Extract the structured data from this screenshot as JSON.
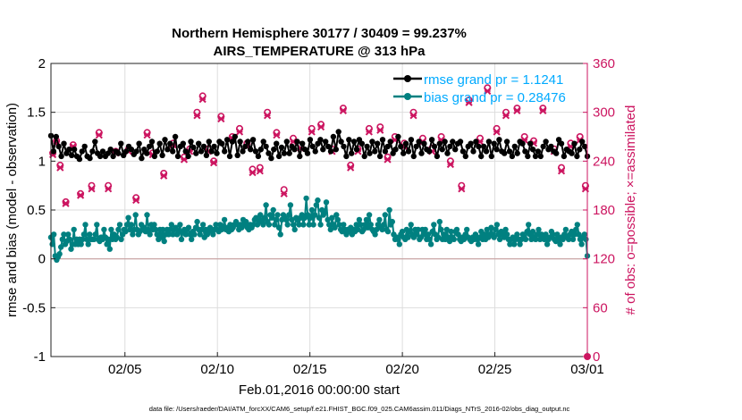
{
  "chart_data": {
    "type": "line",
    "title_line1": "Northern Hemisphere 30177 / 30409 = 99.237%",
    "title_line2": "AIRS_TEMPERATURE @ 313 hPa",
    "xlabel": "Feb.01,2016 00:00:00 start",
    "ylabel_left": "rmse and bias (model - observation)",
    "ylabel_right": "# of obs: o=possible; ×=assimilated",
    "footnote": "data file: /Users/raeder/DAI/ATM_forcXX/CAM6_setup/f.e21.FHIST_BGC.f09_025.CAM6assim.011/Diags_NTrS_2016-02/obs_diag_output.nc",
    "x_range": [
      1,
      30
    ],
    "x_ticks": [
      5,
      10,
      15,
      20,
      25,
      30
    ],
    "x_tick_labels": [
      "02/05",
      "02/10",
      "02/15",
      "02/20",
      "02/25",
      "03/01"
    ],
    "ylim_left": [
      -1,
      2
    ],
    "yticks_left": [
      -1,
      -0.5,
      0,
      0.5,
      1,
      1.5,
      2
    ],
    "ytick_labels_left": [
      "-1",
      "-0.5",
      "0",
      "0.5",
      "1",
      "1.5",
      "2"
    ],
    "ylim_right": [
      0,
      360
    ],
    "yticks_right": [
      0,
      60,
      120,
      180,
      240,
      300,
      360
    ],
    "ytick_labels_right": [
      "0",
      "60",
      "120",
      "180",
      "240",
      "300",
      "360"
    ],
    "grid": true,
    "legend_location": "top-right",
    "colors": {
      "rmse": "#000000",
      "bias": "#008080",
      "obs": "#cc1560",
      "legend_text": "#00aaff",
      "grid": "#dddddd",
      "zero_line": "#c8a0a0"
    },
    "series": [
      {
        "name": "rmse grand pr = 1.1241",
        "axis": "left",
        "values": [
          1.26,
          1.1,
          1.25,
          1.15,
          1.05,
          1.18,
          1.08,
          1.12,
          1.06,
          1.12,
          1.05,
          1.02,
          1.1,
          1.15,
          1.05,
          1.03,
          1.1,
          1.2,
          1.08,
          1.05,
          1.1,
          1.05,
          1.08,
          1.12,
          1.05,
          1.1,
          1.08,
          1.18,
          1.06,
          1.1,
          1.15,
          1.12,
          1.07,
          1.1,
          1.18,
          1.03,
          1.12,
          1.08,
          1.15,
          1.2,
          1.05,
          1.1,
          1.18,
          1.06,
          1.22,
          1.12,
          1.18,
          1.1,
          1.25,
          1.05,
          1.15,
          1.18,
          1.1,
          1.05,
          1.2,
          1.14,
          1.08,
          1.18,
          1.1,
          1.15,
          1.06,
          1.2,
          1.1,
          1.15,
          1.08,
          1.2,
          1.18,
          1.1,
          1.22,
          1.05,
          1.2,
          1.25,
          1.06,
          1.2,
          1.1,
          1.15,
          1.2,
          1.12,
          1.22,
          1.1,
          1.05,
          1.12,
          1.2,
          1.15,
          1.08,
          1.03,
          1.12,
          1.18,
          1.05,
          1.14,
          1.08,
          1.2,
          1.08,
          1.15,
          1.12,
          1.2,
          1.05,
          1.18,
          1.12,
          1.08,
          1.22,
          1.15,
          1.1,
          1.18,
          1.22,
          1.12,
          1.2,
          1.15,
          1.1,
          1.25,
          1.12,
          1.3,
          1.2,
          1.15,
          1.05,
          1.22,
          1.08,
          1.2,
          1.12,
          1.22,
          1.18,
          1.05,
          1.15,
          1.08,
          1.2,
          1.1,
          1.18,
          1.05,
          1.22,
          1.1,
          1.15,
          1.2,
          1.08,
          1.12,
          1.25,
          1.15,
          1.08,
          1.18,
          1.1,
          1.22,
          1.05,
          1.15,
          1.2,
          1.08,
          1.18,
          1.12,
          1.1,
          1.22,
          1.15,
          1.05,
          1.18,
          1.12,
          1.2,
          1.08,
          1.15,
          1.2,
          1.12,
          1.18,
          1.2,
          1.1,
          1.05,
          1.15,
          1.18,
          1.1,
          1.2,
          1.15,
          1.05,
          1.15,
          1.1,
          1.2,
          1.05,
          1.18,
          1.12,
          1.22,
          1.1,
          1.08,
          1.2,
          1.1,
          1.05,
          1.15,
          1.08,
          1.2,
          1.18,
          1.1,
          1.05,
          1.18,
          1.12,
          1.05,
          1.1,
          1.05,
          1.15,
          1.2,
          1.12,
          1.15,
          1.1,
          1.08,
          1.22,
          1.18,
          1.05,
          1.12,
          1.1,
          1.08,
          1.18,
          1.05,
          1.12,
          1.2,
          1.15,
          1.05
        ]
      },
      {
        "name": "bias grand pr = 0.28476",
        "axis": "left",
        "values": [
          0.22,
          0.15,
          0.25,
          0.03,
          -0.01,
          0.02,
          0.05,
          0.12,
          0.2,
          0.25,
          0.15,
          0.18,
          0.25,
          0.2,
          0.1,
          0.15,
          0.3,
          0.15,
          0.2,
          0.15,
          0.2,
          0.15,
          0.2,
          0.25,
          0.35,
          0.2,
          0.15,
          0.25,
          0.2,
          0.2,
          0.2,
          0.25,
          0.35,
          0.2,
          0.18,
          0.22,
          0.2,
          0.3,
          0.22,
          0.15,
          0.2,
          0.1,
          0.3,
          0.2,
          0.25,
          0.2,
          0.22,
          0.3,
          0.35,
          0.2,
          0.25,
          0.3,
          0.28,
          0.35,
          0.42,
          0.3,
          0.35,
          0.25,
          0.3,
          0.45,
          0.3,
          0.25,
          0.28,
          0.35,
          0.3,
          0.32,
          0.28,
          0.45,
          0.3,
          0.25,
          0.35,
          0.3,
          0.35,
          0.3,
          0.25,
          0.2,
          0.3,
          0.22,
          0.3,
          0.18,
          0.25,
          0.3,
          0.25,
          0.3,
          0.35,
          0.25,
          0.3,
          0.32,
          0.25,
          0.28,
          0.35,
          0.2,
          0.28,
          0.3,
          0.25,
          0.3,
          0.32,
          0.25,
          0.2,
          0.28,
          0.25,
          0.32,
          0.38,
          0.3,
          0.25,
          0.3,
          0.35,
          0.22,
          0.3,
          0.25,
          0.28,
          0.32,
          0.3,
          0.25,
          0.3,
          0.35,
          0.3,
          0.28,
          0.35,
          0.3,
          0.32,
          0.4,
          0.3,
          0.32,
          0.28,
          0.35,
          0.3,
          0.32,
          0.35,
          0.38,
          0.35,
          0.3,
          0.35,
          0.32,
          0.4,
          0.35,
          0.38,
          0.32,
          0.3,
          0.35,
          0.32,
          0.35,
          0.4,
          0.42,
          0.35,
          0.38,
          0.45,
          0.38,
          0.35,
          0.42,
          0.55,
          0.38,
          0.35,
          0.45,
          0.42,
          0.5,
          0.35,
          0.4,
          0.45,
          0.32,
          0.25,
          0.4,
          0.45,
          0.42,
          0.4,
          0.35,
          0.45,
          0.55,
          0.4,
          0.35,
          0.3,
          0.42,
          0.4,
          0.35,
          0.42,
          0.45,
          0.35,
          0.42,
          0.62,
          0.45,
          0.35,
          0.42,
          0.5,
          0.35,
          0.45,
          0.55,
          0.6,
          0.42,
          0.35,
          0.5,
          0.45,
          0.48,
          0.58,
          0.4,
          0.35,
          0.3,
          0.42,
          0.35,
          0.32,
          0.45,
          0.4,
          0.35,
          0.3,
          0.28,
          0.35,
          0.3,
          0.25,
          0.3,
          0.28,
          0.32,
          0.25,
          0.3,
          0.28,
          0.35,
          0.3,
          0.4,
          0.35,
          0.28,
          0.3,
          0.35,
          0.4,
          0.32,
          0.45,
          0.35,
          0.3,
          0.28,
          0.25,
          0.3,
          0.35,
          0.4,
          0.32,
          0.3,
          0.35,
          0.45,
          0.3,
          0.28,
          0.5,
          0.35,
          0.38,
          0.25,
          0.2,
          0.22,
          0.2,
          0.15,
          0.25,
          0.28,
          0.22,
          0.2,
          0.3,
          0.22,
          0.28,
          0.35,
          0.25,
          0.22,
          0.3,
          0.25,
          0.3,
          0.2,
          0.22,
          0.3,
          0.25,
          0.3,
          0.2,
          0.25,
          0.2,
          0.15,
          0.28,
          0.35,
          0.25,
          0.2,
          0.22,
          0.38,
          0.3,
          0.2,
          0.25,
          0.2,
          0.3,
          0.22,
          0.18,
          0.28,
          0.22,
          0.2,
          0.28,
          0.3,
          0.25,
          0.2,
          0.18,
          0.22,
          0.2,
          0.25,
          0.3,
          0.22,
          0.2,
          0.18,
          0.22,
          0.2,
          0.25,
          0.2,
          0.15,
          0.22,
          0.28,
          0.2,
          0.25,
          0.2,
          0.3,
          0.22,
          0.25,
          0.32,
          0.25,
          0.22,
          0.3,
          0.35,
          0.25,
          0.2,
          0.28,
          0.25,
          0.22,
          0.3,
          0.25,
          0.2,
          0.15,
          0.2,
          0.22,
          0.15,
          0.2,
          0.25,
          0.2,
          0.15,
          0.2,
          0.25,
          0.22,
          0.2,
          0.28,
          0.35,
          0.25,
          0.2,
          0.28,
          0.22,
          0.2,
          0.25,
          0.3,
          0.2,
          0.25,
          0.22,
          0.2,
          0.25,
          0.15,
          0.2,
          0.22,
          0.28,
          0.25,
          0.2,
          0.18,
          0.25,
          0.2,
          0.15,
          0.22,
          0.2,
          0.25,
          0.3,
          0.22,
          0.2,
          0.25,
          0.28,
          0.2,
          0.25,
          0.3,
          0.35,
          0.25,
          0.2,
          0.15,
          0.22,
          0.25,
          0.2,
          0.03
        ]
      },
      {
        "name": "obs possible",
        "axis": "right",
        "x": [
          1.1,
          1.3,
          1.5,
          1.8,
          2.2,
          2.6,
          3.2,
          3.6,
          4.1,
          4.5,
          5.2,
          5.6,
          6.2,
          6.5,
          7.1,
          7.6,
          8.2,
          8.5,
          8.9,
          9.2,
          9.5,
          9.8,
          10.2,
          10.8,
          11.2,
          11.6,
          11.9,
          12.3,
          12.7,
          13.2,
          13.6,
          14.1,
          14.5,
          15.1,
          15.6,
          16.2,
          16.8,
          17.2,
          17.6,
          18.2,
          18.8,
          19.2,
          19.6,
          20.1,
          20.6,
          21.1,
          21.6,
          22.1,
          22.6,
          23.2,
          23.6,
          24.2,
          24.6,
          25.1,
          25.6,
          26.2,
          26.6,
          27.1,
          27.6,
          28.2,
          28.6,
          29.1,
          29.6,
          29.9
        ],
        "values": [
          250,
          265,
          235,
          190,
          260,
          200,
          210,
          275,
          210,
          252,
          255,
          195,
          275,
          250,
          225,
          262,
          245,
          255,
          300,
          320,
          255,
          240,
          295,
          270,
          280,
          262,
          230,
          232,
          300,
          275,
          205,
          268,
          260,
          280,
          285,
          255,
          305,
          235,
          255,
          280,
          282,
          245,
          270,
          262,
          300,
          268,
          256,
          270,
          240,
          210,
          315,
          268,
          330,
          280,
          300,
          305,
          270,
          265,
          305,
          255,
          232,
          262,
          270,
          210
        ],
        "marker": "o"
      },
      {
        "name": "obs assimilated",
        "axis": "right",
        "x": [
          1.1,
          1.3,
          1.5,
          1.8,
          2.2,
          2.6,
          3.2,
          3.6,
          4.1,
          4.5,
          5.2,
          5.6,
          6.2,
          6.5,
          7.1,
          7.6,
          8.2,
          8.5,
          8.9,
          9.2,
          9.5,
          9.8,
          10.2,
          10.8,
          11.2,
          11.6,
          11.9,
          12.3,
          12.7,
          13.2,
          13.6,
          14.1,
          14.5,
          15.1,
          15.6,
          16.2,
          16.8,
          17.2,
          17.6,
          18.2,
          18.8,
          19.2,
          19.6,
          20.1,
          20.6,
          21.1,
          21.6,
          22.1,
          22.6,
          23.2,
          23.6,
          24.2,
          24.6,
          25.1,
          25.6,
          26.2,
          26.6,
          27.1,
          27.6,
          28.2,
          28.6,
          29.1,
          29.6,
          29.9
        ],
        "values": [
          248,
          262,
          232,
          188,
          258,
          198,
          206,
          272,
          206,
          250,
          252,
          192,
          272,
          248,
          222,
          260,
          242,
          252,
          296,
          316,
          252,
          238,
          292,
          268,
          276,
          258,
          226,
          228,
          296,
          272,
          200,
          264,
          256,
          276,
          282,
          252,
          302,
          232,
          252,
          276,
          278,
          242,
          266,
          258,
          296,
          264,
          252,
          266,
          236,
          206,
          312,
          264,
          326,
          276,
          296,
          302,
          266,
          262,
          302,
          252,
          228,
          258,
          266,
          206
        ],
        "marker": "x"
      }
    ]
  }
}
